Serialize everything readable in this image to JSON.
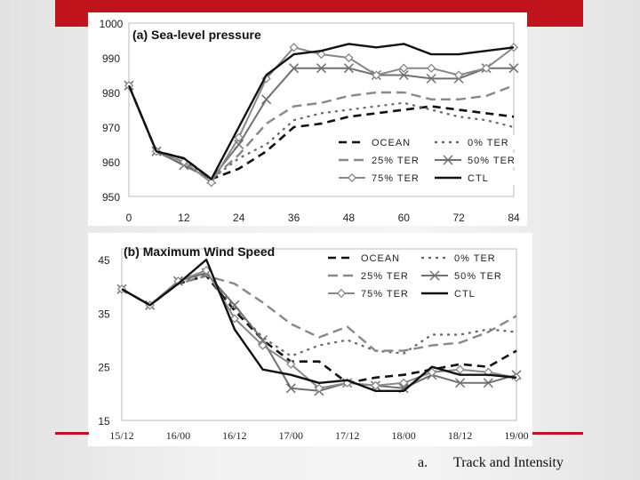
{
  "slide": {
    "caption_marker": "a.",
    "caption_text": "Track and Intensity",
    "accent_color": "#c0141c"
  },
  "chart_data": [
    {
      "type": "line",
      "title": "(a) Sea-level pressure",
      "x": [
        0,
        6,
        12,
        18,
        24,
        30,
        36,
        42,
        48,
        54,
        60,
        66,
        72,
        78,
        84
      ],
      "xticks": [
        0,
        12,
        24,
        36,
        48,
        60,
        72,
        84
      ],
      "xtick_labels": [
        "0",
        "12",
        "24",
        "36",
        "48",
        "60",
        "72",
        "84"
      ],
      "xlim": [
        0,
        84
      ],
      "ylim": [
        950,
        1000
      ],
      "yticks": [
        950,
        960,
        970,
        980,
        990,
        1000
      ],
      "ytick_labels": [
        "950",
        "960",
        "970",
        "980",
        "990",
        "1000"
      ],
      "grid": false,
      "legend_placement": "bottom-right",
      "series": [
        {
          "name": "OCEAN",
          "values": [
            982,
            963,
            961,
            955,
            958,
            963,
            970,
            971,
            973,
            974,
            975,
            976,
            975,
            974,
            973
          ]
        },
        {
          "name": "0% TER",
          "values": [
            982,
            963,
            960,
            955,
            961,
            965,
            972,
            974,
            975,
            976,
            977,
            975,
            973,
            972,
            970
          ]
        },
        {
          "name": "25% TER",
          "values": [
            982,
            963,
            959,
            955,
            962,
            971,
            976,
            977,
            979,
            980,
            980,
            978,
            978,
            979,
            982
          ]
        },
        {
          "name": "50% TER",
          "values": [
            982,
            963,
            959,
            955,
            965,
            978,
            987,
            987,
            987,
            985,
            985,
            984,
            984,
            987,
            987
          ]
        },
        {
          "name": "75% TER",
          "values": [
            982,
            963,
            960,
            954,
            967,
            984,
            993,
            991,
            990,
            985,
            987,
            987,
            985,
            987,
            993
          ]
        },
        {
          "name": "CTL",
          "values": [
            982,
            963,
            961,
            955,
            970,
            985,
            991,
            992,
            994,
            993,
            994,
            991,
            991,
            992,
            993
          ]
        }
      ]
    },
    {
      "type": "line",
      "title": "(b) Maximum Wind Speed",
      "x": [
        0,
        1,
        2,
        3,
        4,
        5,
        6,
        7,
        8,
        9,
        10,
        11,
        12,
        13,
        14,
        15,
        16,
        17,
        18,
        19,
        20,
        21,
        22,
        23,
        24,
        25,
        26,
        27,
        28
      ],
      "xticks": [
        0,
        4,
        8,
        12,
        16,
        20,
        24,
        28
      ],
      "xtick_labels": [
        "15/12",
        "16/00",
        "16/12",
        "17/00",
        "17/12",
        "18/00",
        "18/12",
        "19/00"
      ],
      "xlim": [
        0,
        28
      ],
      "ylim": [
        15,
        47
      ],
      "yticks": [
        15,
        25,
        35,
        45
      ],
      "ytick_labels": [
        "15",
        "25",
        "35",
        "45"
      ],
      "grid": false,
      "legend_placement": "top-right",
      "series": [
        {
          "name": "OCEAN",
          "values": [
            39.5,
            null,
            36.5,
            null,
            40.5,
            null,
            42,
            null,
            35.5,
            null,
            30,
            null,
            26,
            null,
            26,
            null,
            22,
            null,
            23,
            null,
            23.5,
            null,
            24.5,
            null,
            25.5,
            null,
            25,
            null,
            28
          ]
        },
        {
          "name": "0% TER",
          "values": [
            39.5,
            null,
            36.5,
            null,
            40.5,
            null,
            42.5,
            null,
            36,
            null,
            30.5,
            null,
            27,
            null,
            29,
            null,
            30,
            null,
            28,
            null,
            27.5,
            null,
            31,
            null,
            31,
            null,
            32,
            null,
            31.5
          ]
        },
        {
          "name": "25% TER",
          "values": [
            39.5,
            null,
            36.5,
            null,
            40.5,
            null,
            42,
            null,
            40.5,
            null,
            37,
            null,
            33,
            null,
            30.5,
            null,
            32.5,
            null,
            28,
            null,
            28,
            null,
            29,
            null,
            29.5,
            null,
            31.5,
            null,
            34.5
          ]
        },
        {
          "name": "50% TER",
          "values": [
            39.5,
            null,
            36.5,
            null,
            41,
            null,
            42.5,
            null,
            36.5,
            null,
            30,
            null,
            21,
            null,
            20.5,
            null,
            22,
            null,
            21.5,
            null,
            21,
            null,
            23.5,
            null,
            22,
            null,
            22,
            null,
            23.5
          ]
        },
        {
          "name": "75% TER",
          "values": [
            39.5,
            null,
            36.5,
            null,
            41,
            null,
            43,
            null,
            34,
            null,
            29,
            null,
            25.5,
            null,
            21,
            null,
            22,
            null,
            21.5,
            null,
            22,
            null,
            24,
            null,
            24.5,
            null,
            24,
            null,
            23
          ]
        },
        {
          "name": "CTL",
          "values": [
            39.5,
            null,
            36.5,
            null,
            40.5,
            null,
            45,
            null,
            32,
            null,
            24.5,
            null,
            23.5,
            null,
            22,
            null,
            22.5,
            null,
            20.5,
            null,
            20.5,
            null,
            25,
            null,
            23.5,
            null,
            23.5,
            null,
            23
          ]
        }
      ]
    }
  ]
}
